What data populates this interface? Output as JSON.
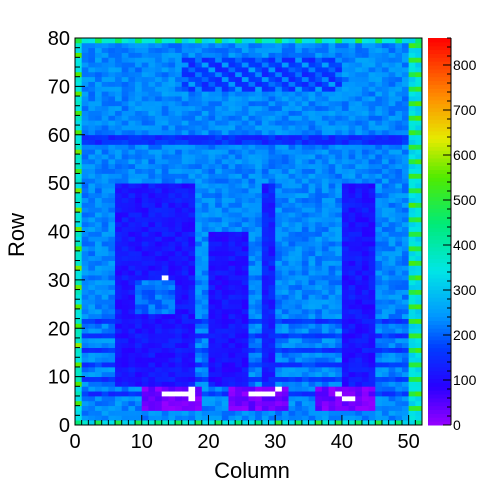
{
  "chart_data": {
    "type": "heatmap",
    "title": "",
    "xlabel": "Column",
    "ylabel": "Row",
    "xlim": [
      0,
      52
    ],
    "ylim": [
      0,
      80
    ],
    "zlim": [
      0,
      860
    ],
    "x_ticks": [
      "0",
      "10",
      "20",
      "30",
      "40",
      "50"
    ],
    "y_ticks": [
      "0",
      "10",
      "20",
      "30",
      "40",
      "50",
      "60",
      "70",
      "80"
    ],
    "z_ticks": [
      "0",
      "100",
      "200",
      "300",
      "400",
      "500",
      "600",
      "700",
      "800"
    ],
    "colormap": "rainbow",
    "grid": false,
    "legend": "colorbar-right",
    "regions": [
      {
        "name": "background",
        "value": 230
      },
      {
        "name": "horizontal band",
        "rows": [
          58,
          60
        ],
        "value": 150
      },
      {
        "name": "left pillar",
        "cols": [
          6,
          18
        ],
        "rows": [
          8,
          50
        ],
        "value": 115
      },
      {
        "name": "left pillar inset",
        "cols": [
          9,
          15
        ],
        "rows": [
          23,
          30
        ],
        "value": 210
      },
      {
        "name": "middle pillar",
        "cols": [
          20,
          26
        ],
        "rows": [
          8,
          40
        ],
        "value": 110
      },
      {
        "name": "narrow pillar",
        "cols": [
          28,
          30
        ],
        "rows": [
          8,
          50
        ],
        "value": 130
      },
      {
        "name": "right pillar",
        "cols": [
          40,
          45
        ],
        "rows": [
          8,
          50
        ],
        "value": 115
      },
      {
        "name": "lower stripes",
        "rows": [
          5,
          22
        ],
        "value": 160
      },
      {
        "name": "bottom box 1",
        "cols": [
          10,
          19
        ],
        "rows": [
          3,
          8
        ],
        "value": 25
      },
      {
        "name": "bottom box 2",
        "cols": [
          23,
          32
        ],
        "rows": [
          3,
          8
        ],
        "value": 25
      },
      {
        "name": "bottom box 3",
        "cols": [
          36,
          45
        ],
        "rows": [
          3,
          8
        ],
        "value": 25
      },
      {
        "name": "top text strip",
        "cols": [
          16,
          40
        ],
        "rows": [
          69,
          76
        ],
        "value": 160
      },
      {
        "name": "edge columns",
        "cols": [
          0,
          1
        ],
        "value": 500
      }
    ],
    "hot_pixels": [
      [
        13,
        30
      ],
      [
        13,
        6
      ],
      [
        14,
        6
      ],
      [
        15,
        6
      ],
      [
        16,
        6
      ],
      [
        17,
        6
      ],
      [
        17,
        7
      ],
      [
        17,
        5
      ],
      [
        26,
        6
      ],
      [
        27,
        6
      ],
      [
        28,
        6
      ],
      [
        29,
        6
      ],
      [
        30,
        7
      ],
      [
        39,
        6
      ],
      [
        40,
        5
      ],
      [
        41,
        5
      ]
    ]
  }
}
